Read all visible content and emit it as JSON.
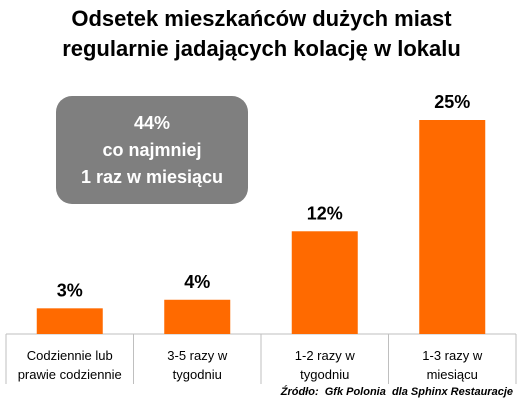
{
  "chart_data": {
    "type": "bar",
    "title": [
      "Odsetek mieszkańców dużych miast",
      "regularnie jadających kolację w lokalu"
    ],
    "categories": [
      [
        "Codziennie lub",
        "prawie codziennie"
      ],
      [
        "3-5 razy w",
        "tygodniu"
      ],
      [
        "1-2 razy w",
        "tygodniu"
      ],
      [
        "1-3 razy w",
        "miesiącu"
      ]
    ],
    "values": [
      3,
      4,
      12,
      25
    ],
    "data_labels": [
      "3%",
      "4%",
      "12%",
      "25%"
    ],
    "unit": "%",
    "ylim": [
      0,
      25
    ],
    "bar_color": "#ff6a00",
    "grid": false,
    "legend": "none",
    "annotation": [
      "44%",
      "co najmniej",
      "1 raz w miesiącu"
    ],
    "annotation_color": "#7f7f7f",
    "source": "Źródło:  Gfk Polonia  dla Sphinx Restauracje"
  }
}
